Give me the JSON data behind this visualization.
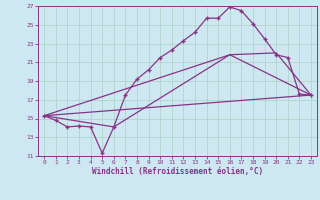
{
  "xlabel": "Windchill (Refroidissement éolien,°C)",
  "bg_color": "#cde8f0",
  "grid_color": "#b0d4cc",
  "line_color": "#883388",
  "xlim": [
    -0.5,
    23.5
  ],
  "ylim": [
    11,
    27
  ],
  "xticks": [
    0,
    1,
    2,
    3,
    4,
    5,
    6,
    7,
    8,
    9,
    10,
    11,
    12,
    13,
    14,
    15,
    16,
    17,
    18,
    19,
    20,
    21,
    22,
    23
  ],
  "yticks": [
    11,
    13,
    15,
    17,
    19,
    21,
    23,
    25,
    27
  ],
  "line1_x": [
    0,
    1,
    2,
    3,
    4,
    5,
    6,
    7,
    8,
    9,
    10,
    11,
    12,
    13,
    14,
    15,
    16,
    17,
    18,
    19,
    20,
    21,
    22,
    23
  ],
  "line1_y": [
    15.3,
    14.8,
    14.1,
    14.2,
    14.1,
    11.3,
    14.1,
    17.5,
    19.2,
    20.2,
    21.5,
    22.3,
    23.3,
    24.2,
    25.7,
    25.7,
    26.9,
    26.5,
    25.1,
    23.5,
    21.8,
    21.5,
    17.6,
    17.5
  ],
  "line2_x": [
    0,
    23
  ],
  "line2_y": [
    15.3,
    17.5
  ],
  "line3_x": [
    0,
    16,
    23
  ],
  "line3_y": [
    15.3,
    21.8,
    17.5
  ],
  "line4_x": [
    0,
    23
  ],
  "line4_y": [
    15.3,
    17.5
  ],
  "line5_x": [
    0,
    6,
    16,
    20,
    23
  ],
  "line5_y": [
    15.3,
    14.1,
    21.8,
    22.0,
    17.5
  ]
}
